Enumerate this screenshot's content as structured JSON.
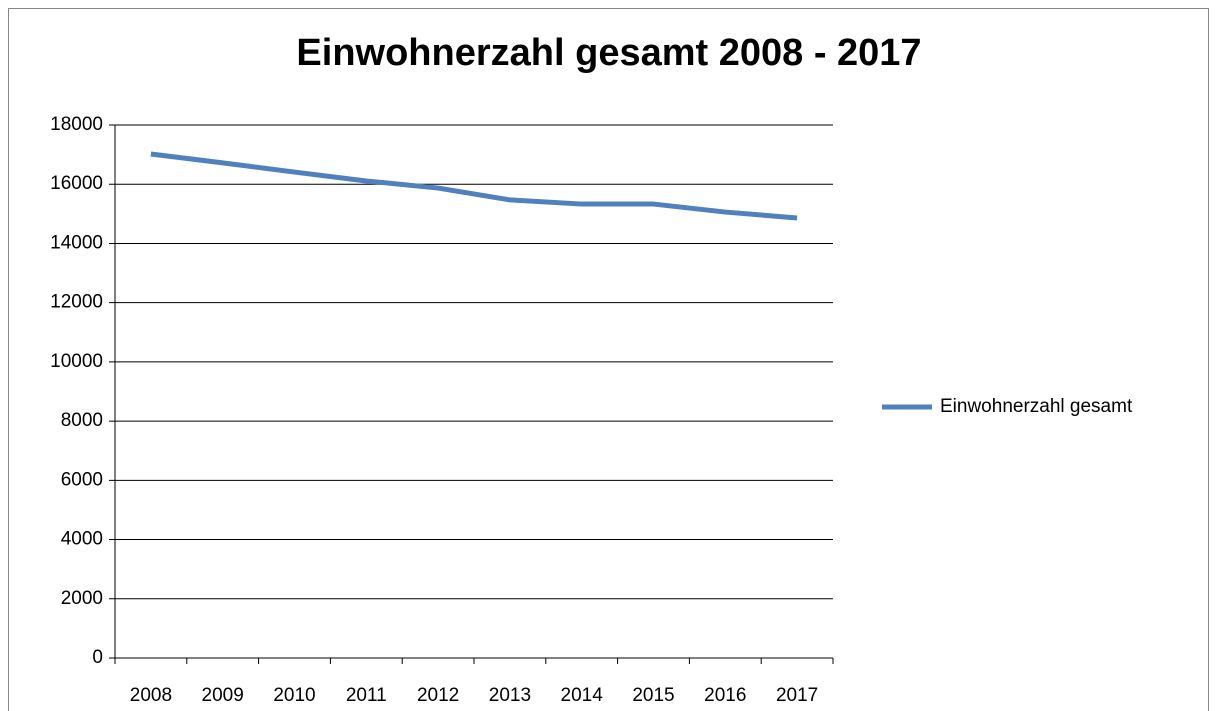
{
  "chart_data": {
    "type": "line",
    "title": "Einwohnerzahl gesamt 2008 - 2017",
    "categories": [
      "2008",
      "2009",
      "2010",
      "2011",
      "2012",
      "2013",
      "2014",
      "2015",
      "2016",
      "2017"
    ],
    "series": [
      {
        "name": "Einwohnerzahl gesamt",
        "color": "#4f81bd",
        "values": [
          17020,
          16720,
          16410,
          16110,
          15870,
          15470,
          15330,
          15330,
          15060,
          14860
        ]
      }
    ],
    "ylim": [
      0,
      18000
    ],
    "yticks": [
      0,
      2000,
      4000,
      6000,
      8000,
      10000,
      12000,
      14000,
      16000,
      18000
    ],
    "grid": true,
    "legend": "right"
  }
}
